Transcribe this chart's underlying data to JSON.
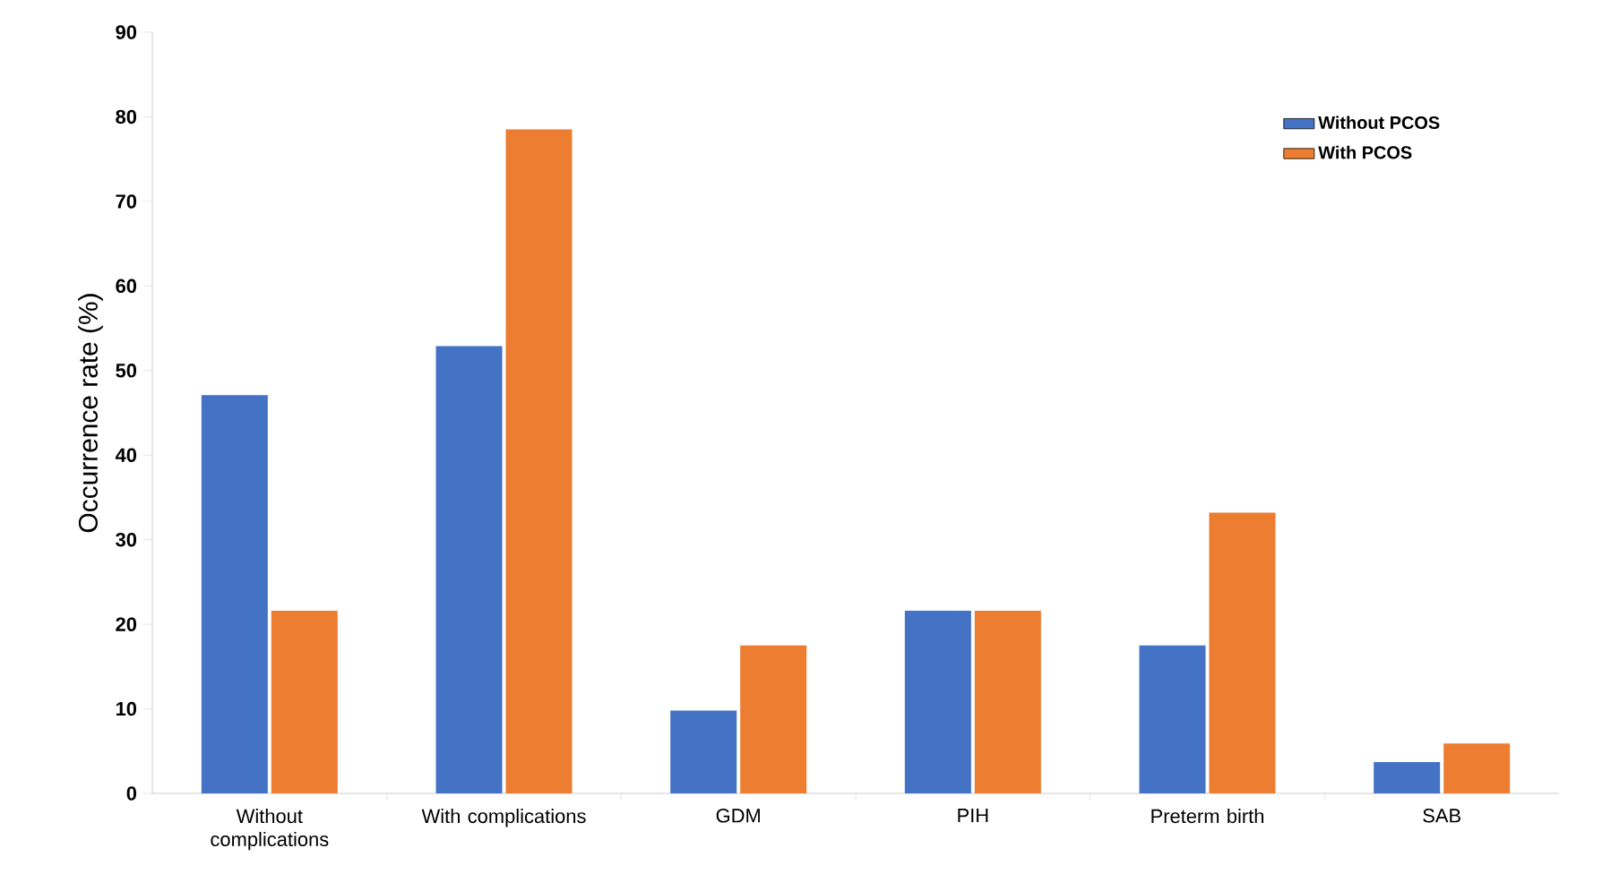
{
  "chart_data": {
    "type": "bar",
    "ylabel": "Occurrence rate (%)",
    "categories": [
      "Without complications",
      "With complications",
      "GDM",
      "PIH",
      "Preterm birth",
      "SAB"
    ],
    "series": [
      {
        "name": "Without PCOS",
        "color": "#4472c4",
        "values": [
          47.1,
          52.9,
          9.8,
          21.6,
          17.5,
          3.7
        ]
      },
      {
        "name": "With PCOS",
        "color": "#ed7d31",
        "values": [
          21.6,
          78.5,
          17.5,
          21.6,
          33.2,
          5.9
        ]
      }
    ],
    "ylim": [
      0,
      90
    ],
    "yticks": [
      0,
      10,
      20,
      30,
      40,
      50,
      60,
      70,
      80,
      90
    ],
    "grid": false,
    "legend": "top right"
  }
}
